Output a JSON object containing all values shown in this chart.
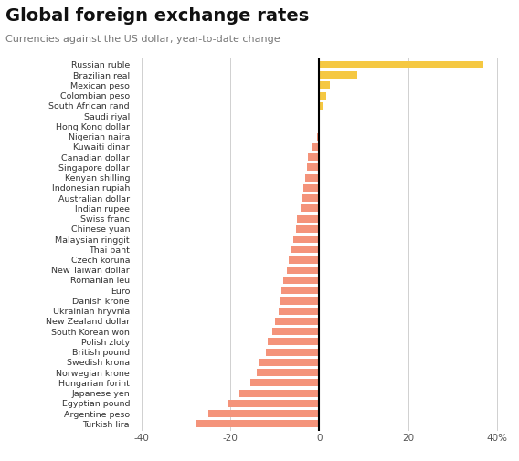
{
  "title": "Global foreign exchange rates",
  "subtitle": "Currencies against the US dollar, year-to-date change",
  "categories": [
    "Russian ruble",
    "Brazilian real",
    "Mexican peso",
    "Colombian peso",
    "South African rand",
    "Saudi riyal",
    "Hong Kong dollar",
    "Nigerian naira",
    "Kuwaiti dinar",
    "Canadian dollar",
    "Singapore dollar",
    "Kenyan shilling",
    "Indonesian rupiah",
    "Australian dollar",
    "Indian rupee",
    "Swiss franc",
    "Chinese yuan",
    "Malaysian ringgit",
    "Thai baht",
    "Czech koruna",
    "New Taiwan dollar",
    "Romanian leu",
    "Euro",
    "Danish krone",
    "Ukrainian hryvnia",
    "New Zealand dollar",
    "South Korean won",
    "Polish zloty",
    "British pound",
    "Swedish krona",
    "Norwegian krone",
    "Hungarian forint",
    "Japanese yen",
    "Egyptian pound",
    "Argentine peso",
    "Turkish lira"
  ],
  "values": [
    37.0,
    8.5,
    2.5,
    1.5,
    0.8,
    0.1,
    -0.3,
    -0.5,
    -1.5,
    -2.5,
    -2.8,
    -3.2,
    -3.5,
    -3.8,
    -4.2,
    -5.0,
    -5.3,
    -5.8,
    -6.2,
    -6.8,
    -7.2,
    -8.0,
    -8.5,
    -8.8,
    -9.2,
    -10.0,
    -10.5,
    -11.5,
    -12.0,
    -13.5,
    -14.0,
    -15.5,
    -18.0,
    -20.5,
    -25.0,
    -27.5
  ],
  "positive_color": "#f5c842",
  "negative_color": "#f4937a",
  "xlim": [
    -42,
    42
  ],
  "xticks": [
    -40,
    -20,
    0,
    20,
    40
  ],
  "xtick_labels": [
    "-40",
    "-20",
    "0",
    "20",
    "40%"
  ],
  "background_color": "#ffffff",
  "grid_color": "#d0d0d0",
  "title_fontsize": 14,
  "subtitle_fontsize": 8,
  "label_fontsize": 6.8,
  "tick_fontsize": 7.5
}
